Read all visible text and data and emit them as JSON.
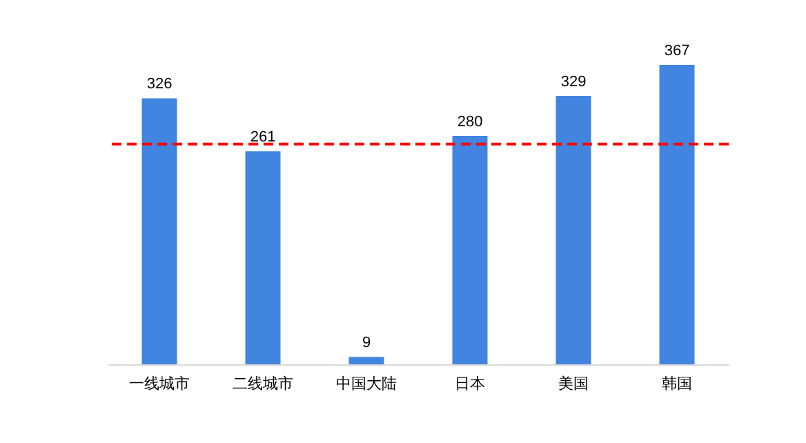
{
  "chart_data": {
    "type": "bar",
    "categories": [
      "一线城市",
      "二线城市",
      "中国大陆",
      "日本",
      "美国",
      "韩国"
    ],
    "values": [
      326,
      261,
      9,
      280,
      329,
      367
    ],
    "color": "#4285e0",
    "data_labels": true,
    "ref_lines": [
      {
        "axis": "y",
        "value": 270,
        "color": "#ff0000",
        "line_style": "dashed"
      }
    ]
  }
}
